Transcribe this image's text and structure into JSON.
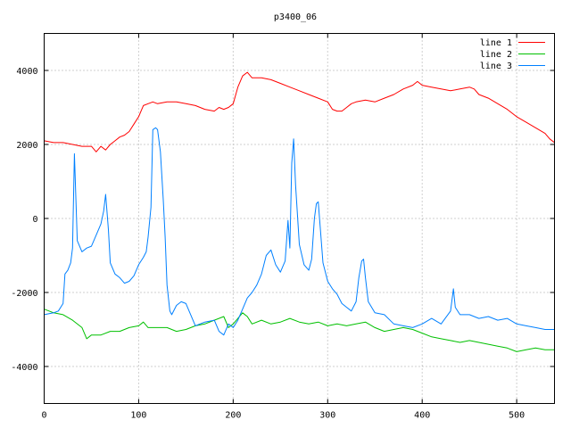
{
  "chart_data": {
    "type": "line",
    "title": "p3400_06",
    "xlabel": "",
    "ylabel": "",
    "xlim": [
      0,
      540
    ],
    "ylim": [
      -5000,
      5000
    ],
    "xticks": [
      0,
      100,
      200,
      300,
      400,
      500
    ],
    "yticks": [
      -4000,
      -2000,
      0,
      2000,
      4000
    ],
    "grid": true,
    "legend_position": "top-right",
    "series": [
      {
        "name": "line 1",
        "color": "#ff0000",
        "points": [
          [
            0,
            2100
          ],
          [
            10,
            2050
          ],
          [
            20,
            2050
          ],
          [
            30,
            2000
          ],
          [
            40,
            1950
          ],
          [
            50,
            1950
          ],
          [
            55,
            1800
          ],
          [
            60,
            1950
          ],
          [
            65,
            1850
          ],
          [
            70,
            2000
          ],
          [
            75,
            2100
          ],
          [
            80,
            2200
          ],
          [
            85,
            2250
          ],
          [
            90,
            2350
          ],
          [
            95,
            2550
          ],
          [
            100,
            2750
          ],
          [
            105,
            3050
          ],
          [
            110,
            3100
          ],
          [
            115,
            3150
          ],
          [
            120,
            3100
          ],
          [
            130,
            3150
          ],
          [
            140,
            3150
          ],
          [
            150,
            3100
          ],
          [
            160,
            3050
          ],
          [
            170,
            2950
          ],
          [
            180,
            2900
          ],
          [
            185,
            3000
          ],
          [
            190,
            2950
          ],
          [
            195,
            3000
          ],
          [
            200,
            3100
          ],
          [
            205,
            3550
          ],
          [
            210,
            3850
          ],
          [
            215,
            3950
          ],
          [
            220,
            3800
          ],
          [
            230,
            3800
          ],
          [
            240,
            3750
          ],
          [
            250,
            3650
          ],
          [
            260,
            3550
          ],
          [
            270,
            3450
          ],
          [
            280,
            3350
          ],
          [
            290,
            3250
          ],
          [
            300,
            3150
          ],
          [
            305,
            2950
          ],
          [
            310,
            2900
          ],
          [
            315,
            2900
          ],
          [
            320,
            3000
          ],
          [
            325,
            3100
          ],
          [
            330,
            3150
          ],
          [
            340,
            3200
          ],
          [
            350,
            3150
          ],
          [
            360,
            3250
          ],
          [
            370,
            3350
          ],
          [
            380,
            3500
          ],
          [
            390,
            3600
          ],
          [
            395,
            3700
          ],
          [
            400,
            3600
          ],
          [
            410,
            3550
          ],
          [
            420,
            3500
          ],
          [
            430,
            3450
          ],
          [
            440,
            3500
          ],
          [
            450,
            3550
          ],
          [
            455,
            3500
          ],
          [
            460,
            3350
          ],
          [
            470,
            3250
          ],
          [
            480,
            3100
          ],
          [
            490,
            2950
          ],
          [
            500,
            2750
          ],
          [
            510,
            2600
          ],
          [
            520,
            2450
          ],
          [
            530,
            2300
          ],
          [
            535,
            2150
          ],
          [
            540,
            2050
          ]
        ]
      },
      {
        "name": "line 2",
        "color": "#00c000",
        "points": [
          [
            0,
            -2450
          ],
          [
            10,
            -2550
          ],
          [
            20,
            -2600
          ],
          [
            30,
            -2750
          ],
          [
            40,
            -2950
          ],
          [
            45,
            -3250
          ],
          [
            50,
            -3150
          ],
          [
            60,
            -3150
          ],
          [
            70,
            -3050
          ],
          [
            80,
            -3050
          ],
          [
            90,
            -2950
          ],
          [
            100,
            -2900
          ],
          [
            105,
            -2800
          ],
          [
            110,
            -2950
          ],
          [
            120,
            -2950
          ],
          [
            130,
            -2950
          ],
          [
            140,
            -3050
          ],
          [
            150,
            -3000
          ],
          [
            160,
            -2900
          ],
          [
            170,
            -2850
          ],
          [
            180,
            -2750
          ],
          [
            190,
            -2650
          ],
          [
            195,
            -2950
          ],
          [
            200,
            -2850
          ],
          [
            210,
            -2550
          ],
          [
            215,
            -2650
          ],
          [
            220,
            -2850
          ],
          [
            230,
            -2750
          ],
          [
            240,
            -2850
          ],
          [
            250,
            -2800
          ],
          [
            260,
            -2700
          ],
          [
            270,
            -2800
          ],
          [
            280,
            -2850
          ],
          [
            290,
            -2800
          ],
          [
            300,
            -2900
          ],
          [
            310,
            -2850
          ],
          [
            320,
            -2900
          ],
          [
            330,
            -2850
          ],
          [
            340,
            -2800
          ],
          [
            350,
            -2950
          ],
          [
            360,
            -3050
          ],
          [
            370,
            -3000
          ],
          [
            380,
            -2950
          ],
          [
            390,
            -3000
          ],
          [
            400,
            -3100
          ],
          [
            410,
            -3200
          ],
          [
            420,
            -3250
          ],
          [
            430,
            -3300
          ],
          [
            440,
            -3350
          ],
          [
            450,
            -3300
          ],
          [
            460,
            -3350
          ],
          [
            470,
            -3400
          ],
          [
            480,
            -3450
          ],
          [
            490,
            -3500
          ],
          [
            500,
            -3600
          ],
          [
            510,
            -3550
          ],
          [
            520,
            -3500
          ],
          [
            530,
            -3550
          ],
          [
            540,
            -3550
          ]
        ]
      },
      {
        "name": "line 3",
        "color": "#0080ff",
        "points": [
          [
            0,
            -2600
          ],
          [
            10,
            -2550
          ],
          [
            15,
            -2500
          ],
          [
            20,
            -2300
          ],
          [
            22,
            -1500
          ],
          [
            25,
            -1400
          ],
          [
            28,
            -1200
          ],
          [
            30,
            -800
          ],
          [
            32,
            1750
          ],
          [
            35,
            -600
          ],
          [
            40,
            -900
          ],
          [
            45,
            -800
          ],
          [
            50,
            -750
          ],
          [
            55,
            -450
          ],
          [
            60,
            -150
          ],
          [
            63,
            200
          ],
          [
            65,
            650
          ],
          [
            68,
            -300
          ],
          [
            70,
            -1200
          ],
          [
            75,
            -1500
          ],
          [
            80,
            -1600
          ],
          [
            85,
            -1750
          ],
          [
            90,
            -1700
          ],
          [
            95,
            -1550
          ],
          [
            100,
            -1250
          ],
          [
            105,
            -1050
          ],
          [
            108,
            -900
          ],
          [
            110,
            -500
          ],
          [
            113,
            300
          ],
          [
            115,
            2400
          ],
          [
            118,
            2450
          ],
          [
            120,
            2400
          ],
          [
            123,
            1800
          ],
          [
            126,
            500
          ],
          [
            128,
            -500
          ],
          [
            130,
            -1800
          ],
          [
            133,
            -2500
          ],
          [
            135,
            -2600
          ],
          [
            140,
            -2350
          ],
          [
            145,
            -2250
          ],
          [
            150,
            -2300
          ],
          [
            155,
            -2600
          ],
          [
            160,
            -2900
          ],
          [
            170,
            -2800
          ],
          [
            180,
            -2750
          ],
          [
            185,
            -3050
          ],
          [
            190,
            -3150
          ],
          [
            195,
            -2850
          ],
          [
            200,
            -2950
          ],
          [
            205,
            -2750
          ],
          [
            210,
            -2450
          ],
          [
            215,
            -2150
          ],
          [
            220,
            -2000
          ],
          [
            225,
            -1800
          ],
          [
            230,
            -1500
          ],
          [
            235,
            -1000
          ],
          [
            240,
            -850
          ],
          [
            245,
            -1250
          ],
          [
            250,
            -1450
          ],
          [
            255,
            -1150
          ],
          [
            258,
            -50
          ],
          [
            260,
            -800
          ],
          [
            262,
            1500
          ],
          [
            264,
            2150
          ],
          [
            266,
            900
          ],
          [
            270,
            -700
          ],
          [
            275,
            -1250
          ],
          [
            280,
            -1400
          ],
          [
            283,
            -1100
          ],
          [
            286,
            0
          ],
          [
            288,
            400
          ],
          [
            290,
            450
          ],
          [
            292,
            -200
          ],
          [
            295,
            -1200
          ],
          [
            300,
            -1700
          ],
          [
            305,
            -1900
          ],
          [
            310,
            -2050
          ],
          [
            315,
            -2300
          ],
          [
            320,
            -2400
          ],
          [
            325,
            -2500
          ],
          [
            330,
            -2250
          ],
          [
            333,
            -1600
          ],
          [
            336,
            -1150
          ],
          [
            338,
            -1100
          ],
          [
            340,
            -1600
          ],
          [
            343,
            -2250
          ],
          [
            350,
            -2550
          ],
          [
            360,
            -2600
          ],
          [
            370,
            -2850
          ],
          [
            380,
            -2900
          ],
          [
            390,
            -2950
          ],
          [
            400,
            -2850
          ],
          [
            410,
            -2700
          ],
          [
            420,
            -2850
          ],
          [
            430,
            -2500
          ],
          [
            433,
            -1900
          ],
          [
            435,
            -2400
          ],
          [
            440,
            -2600
          ],
          [
            450,
            -2600
          ],
          [
            460,
            -2700
          ],
          [
            470,
            -2650
          ],
          [
            480,
            -2750
          ],
          [
            490,
            -2700
          ],
          [
            500,
            -2850
          ],
          [
            510,
            -2900
          ],
          [
            520,
            -2950
          ],
          [
            530,
            -3000
          ],
          [
            540,
            -3000
          ]
        ]
      }
    ]
  }
}
